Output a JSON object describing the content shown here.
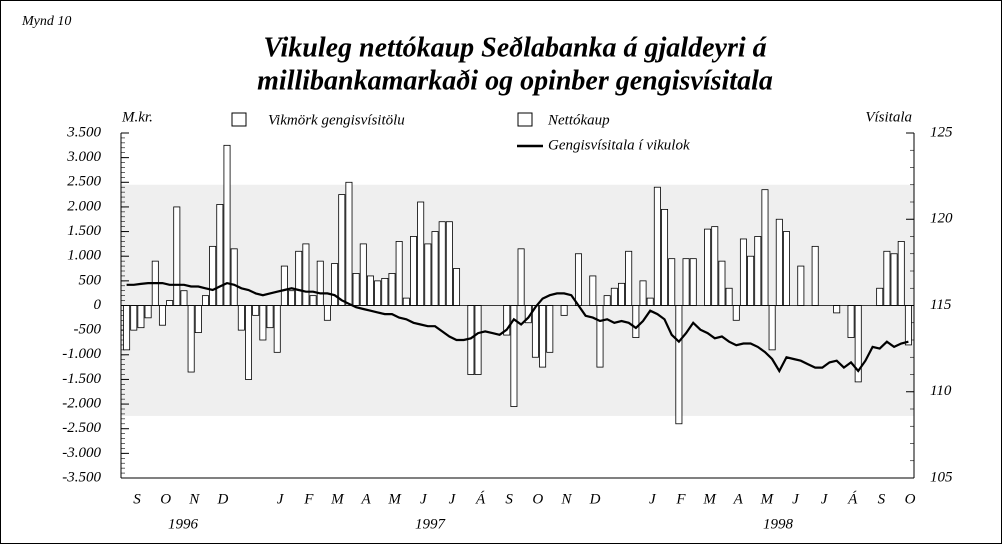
{
  "chart_data": {
    "type": "bar-line",
    "figure_label": "Mynd 10",
    "title": [
      "Vikuleg nettókaup Seðlabanka á gjaldeyri á",
      "millibankamarkaði og opinber gengisvísitala"
    ],
    "ylabel": "M.kr.",
    "y2label": "Vísitala",
    "month_labels": [
      "S",
      "O",
      "N",
      "D",
      null,
      "J",
      "F",
      "M",
      "A",
      "M",
      "J",
      "J",
      "Á",
      "S",
      "O",
      "N",
      "D",
      null,
      "J",
      "F",
      "M",
      "A",
      "M",
      "J",
      "J",
      "Á",
      "S",
      "O"
    ],
    "year_labels": [
      "1996",
      "1997",
      "1998"
    ],
    "ylim": [
      -3500,
      3500
    ],
    "yticks": [
      {
        "value": -3500,
        "label": "-3.500"
      },
      {
        "value": -3000,
        "label": "-3.000"
      },
      {
        "value": -2500,
        "label": "-2.500"
      },
      {
        "value": -2000,
        "label": "-2.000"
      },
      {
        "value": -1500,
        "label": "-1.500"
      },
      {
        "value": -1000,
        "label": "-1.000"
      },
      -500,
      0,
      500,
      {
        "value": 1000,
        "label": "1.000"
      },
      {
        "value": 1500,
        "label": "1.500"
      },
      {
        "value": 2000,
        "label": "2.000"
      },
      {
        "value": 2500,
        "label": "2.500"
      },
      {
        "value": 3000,
        "label": "3.000"
      },
      {
        "value": 3500,
        "label": "3.500"
      }
    ],
    "y2lim": [
      105,
      125
    ],
    "y2ticks": [
      105,
      110,
      115,
      120,
      125
    ],
    "band": {
      "name": "Vikmörk gengisvísitölu",
      "axis": "y2",
      "values": [
        108.6,
        122.0
      ],
      "color": "#efefef"
    },
    "series": [
      {
        "name": "Nettókaup",
        "type": "bar",
        "color": "#ffffff",
        "values": [
          -900,
          -500,
          -450,
          -250,
          900,
          -400,
          100,
          2000,
          300,
          -1350,
          -550,
          200,
          1200,
          2050,
          3250,
          1150,
          -500,
          -1500,
          -200,
          -700,
          -450,
          -950,
          800,
          300,
          1100,
          1250,
          200,
          900,
          -300,
          850,
          2250,
          2500,
          650,
          1250,
          600,
          500,
          550,
          650,
          1300,
          150,
          1400,
          2100,
          1250,
          1500,
          1700,
          1700,
          750,
          0,
          -1400,
          -1400,
          0,
          0,
          0,
          -600,
          -2050,
          1150,
          -350,
          -1050,
          -1250,
          -950,
          0,
          -200,
          0,
          1050,
          0,
          600,
          -1250,
          200,
          350,
          450,
          1100,
          -650,
          500,
          150,
          2400,
          1950,
          950,
          -2400,
          950,
          950,
          0,
          1550,
          1600,
          900,
          350,
          -300,
          1350,
          1000,
          1400,
          2350,
          -900,
          1750,
          1500,
          0,
          800,
          0,
          1200,
          0,
          0,
          -150,
          0,
          -650,
          -1550,
          0,
          0,
          350,
          1100,
          1050,
          1300,
          -800
        ]
      },
      {
        "name": "Gengisvísitala í vikulok",
        "type": "line",
        "axis": "y2",
        "color": "#000000",
        "values": [
          116.2,
          116.2,
          116.25,
          116.3,
          116.3,
          116.3,
          116.2,
          116.2,
          116.2,
          116.1,
          116.1,
          116.0,
          115.9,
          116.1,
          116.3,
          116.2,
          116.0,
          115.9,
          115.7,
          115.6,
          115.7,
          115.8,
          115.9,
          116.0,
          115.9,
          115.8,
          115.8,
          115.7,
          115.7,
          115.6,
          115.3,
          115.1,
          114.9,
          114.8,
          114.7,
          114.6,
          114.5,
          114.5,
          114.3,
          114.2,
          114.0,
          113.9,
          113.8,
          113.8,
          113.5,
          113.2,
          113.0,
          113.0,
          113.1,
          113.4,
          113.5,
          113.4,
          113.3,
          113.6,
          114.2,
          113.9,
          114.3,
          114.9,
          115.4,
          115.6,
          115.7,
          115.7,
          115.6,
          115.0,
          114.4,
          114.3,
          114.1,
          114.2,
          114.0,
          114.1,
          114.0,
          113.7,
          114.1,
          114.7,
          114.5,
          114.2,
          113.3,
          112.9,
          113.4,
          114.0,
          113.6,
          113.4,
          113.1,
          113.2,
          112.9,
          112.7,
          112.8,
          112.8,
          112.6,
          112.3,
          111.9,
          111.2,
          112.0,
          111.9,
          111.8,
          111.6,
          111.4,
          111.4,
          111.7,
          111.8,
          111.4,
          111.7,
          111.2,
          111.8,
          112.6,
          112.5,
          112.9,
          112.6,
          112.8,
          112.9
        ]
      }
    ]
  }
}
